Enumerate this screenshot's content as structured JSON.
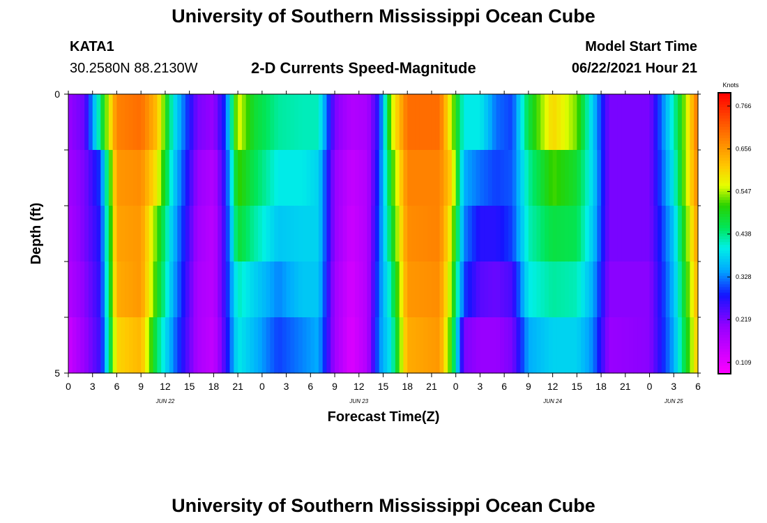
{
  "header": {
    "title": "University of Southern Mississippi Ocean Cube",
    "station": "KATA1",
    "coords": "30.2580N  88.2130W",
    "subtitle": "2-D Currents Speed-Magnitude",
    "model_label": "Model Start Time",
    "model_time": "06/22/2021 Hour 21"
  },
  "footer": {
    "title": "University of Southern Mississippi Ocean Cube"
  },
  "chart_data": {
    "type": "heatmap",
    "title": "2-D Currents Speed-Magnitude",
    "xlabel": "Forecast Time(Z)",
    "ylabel": "Depth (ft)",
    "x_tick_labels": [
      "0",
      "3",
      "6",
      "9",
      "12",
      "15",
      "18",
      "21",
      "0",
      "3",
      "6",
      "9",
      "12",
      "15",
      "18",
      "21",
      "0",
      "3",
      "6",
      "9",
      "12",
      "15",
      "18",
      "21",
      "0",
      "3",
      "6"
    ],
    "x_range_hours": [
      0,
      78
    ],
    "date_labels": [
      {
        "label": "JUN 22",
        "hour": 12
      },
      {
        "label": "JUN 23",
        "hour": 36
      },
      {
        "label": "JUN 24",
        "hour": 60
      },
      {
        "label": "JUN 25",
        "hour": 75
      }
    ],
    "y_range_ft": [
      0,
      5
    ],
    "y_tick_labels": [
      {
        "value": 0,
        "label": "0"
      },
      {
        "value": 5,
        "label": "5"
      }
    ],
    "depth_rows": 5,
    "colorbar": {
      "label": "Knots",
      "min": 0.08,
      "max": 0.8,
      "ticks": [
        0.109,
        0.219,
        0.328,
        0.438,
        0.547,
        0.656,
        0.766
      ],
      "tick_labels": [
        "0.109",
        "0.219",
        "0.328",
        "0.438",
        "0.547",
        "0.656",
        "0.766"
      ]
    },
    "speed_knots_keyframes": [
      {
        "hour": 0,
        "speeds": [
          0.2,
          0.19,
          0.18,
          0.17,
          0.14
        ]
      },
      {
        "hour": 2,
        "speeds": [
          0.23,
          0.22,
          0.22,
          0.21,
          0.2
        ]
      },
      {
        "hour": 4,
        "speeds": [
          0.45,
          0.3,
          0.28,
          0.27,
          0.26
        ]
      },
      {
        "hour": 6,
        "speeds": [
          0.68,
          0.66,
          0.65,
          0.64,
          0.6
        ]
      },
      {
        "hour": 9,
        "speeds": [
          0.7,
          0.67,
          0.66,
          0.66,
          0.63
        ]
      },
      {
        "hour": 11,
        "speeds": [
          0.62,
          0.58,
          0.52,
          0.5,
          0.45
        ]
      },
      {
        "hour": 13,
        "speeds": [
          0.4,
          0.38,
          0.36,
          0.35,
          0.33
        ]
      },
      {
        "hour": 16,
        "speeds": [
          0.22,
          0.2,
          0.19,
          0.18,
          0.18
        ]
      },
      {
        "hour": 18,
        "speeds": [
          0.2,
          0.17,
          0.16,
          0.16,
          0.15
        ]
      },
      {
        "hour": 19.5,
        "speeds": [
          0.3,
          0.28,
          0.27,
          0.27,
          0.26
        ]
      },
      {
        "hour": 21,
        "speeds": [
          0.57,
          0.52,
          0.48,
          0.42,
          0.4
        ]
      },
      {
        "hour": 23,
        "speeds": [
          0.48,
          0.46,
          0.43,
          0.38,
          0.36
        ]
      },
      {
        "hour": 26,
        "speeds": [
          0.43,
          0.4,
          0.37,
          0.33,
          0.3
        ]
      },
      {
        "hour": 29,
        "speeds": [
          0.42,
          0.4,
          0.38,
          0.37,
          0.33
        ]
      },
      {
        "hour": 31,
        "speeds": [
          0.42,
          0.38,
          0.38,
          0.37,
          0.35
        ]
      },
      {
        "hour": 33,
        "speeds": [
          0.22,
          0.2,
          0.2,
          0.19,
          0.19
        ]
      },
      {
        "hour": 35,
        "speeds": [
          0.17,
          0.15,
          0.14,
          0.13,
          0.12
        ]
      },
      {
        "hour": 37,
        "speeds": [
          0.18,
          0.17,
          0.17,
          0.17,
          0.17
        ]
      },
      {
        "hour": 38.5,
        "speeds": [
          0.28,
          0.3,
          0.31,
          0.32,
          0.33
        ]
      },
      {
        "hour": 40,
        "speeds": [
          0.55,
          0.5,
          0.47,
          0.43,
          0.4
        ]
      },
      {
        "hour": 42,
        "speeds": [
          0.7,
          0.68,
          0.67,
          0.66,
          0.64
        ]
      },
      {
        "hour": 46,
        "speeds": [
          0.7,
          0.68,
          0.68,
          0.67,
          0.66
        ]
      },
      {
        "hour": 47.5,
        "speeds": [
          0.55,
          0.6,
          0.56,
          0.53,
          0.5
        ]
      },
      {
        "hour": 49,
        "speeds": [
          0.4,
          0.35,
          0.33,
          0.3,
          0.22
        ]
      },
      {
        "hour": 51,
        "speeds": [
          0.4,
          0.32,
          0.27,
          0.24,
          0.2
        ]
      },
      {
        "hour": 53,
        "speeds": [
          0.32,
          0.3,
          0.27,
          0.23,
          0.2
        ]
      },
      {
        "hour": 55,
        "speeds": [
          0.3,
          0.31,
          0.3,
          0.25,
          0.22
        ]
      },
      {
        "hour": 57,
        "speeds": [
          0.47,
          0.43,
          0.42,
          0.4,
          0.35
        ]
      },
      {
        "hour": 60,
        "speeds": [
          0.6,
          0.52,
          0.47,
          0.43,
          0.38
        ]
      },
      {
        "hour": 63,
        "speeds": [
          0.53,
          0.48,
          0.46,
          0.42,
          0.38
        ]
      },
      {
        "hour": 65,
        "speeds": [
          0.37,
          0.38,
          0.37,
          0.35,
          0.33
        ]
      },
      {
        "hour": 67,
        "speeds": [
          0.22,
          0.22,
          0.22,
          0.21,
          0.2
        ]
      },
      {
        "hour": 72,
        "speeds": [
          0.22,
          0.22,
          0.22,
          0.21,
          0.21
        ]
      },
      {
        "hour": 75,
        "speeds": [
          0.42,
          0.4,
          0.37,
          0.36,
          0.35
        ]
      },
      {
        "hour": 76.5,
        "speeds": [
          0.55,
          0.55,
          0.52,
          0.5,
          0.48
        ]
      },
      {
        "hour": 78,
        "speeds": [
          0.7,
          0.68,
          0.66,
          0.64,
          0.62
        ]
      }
    ]
  }
}
